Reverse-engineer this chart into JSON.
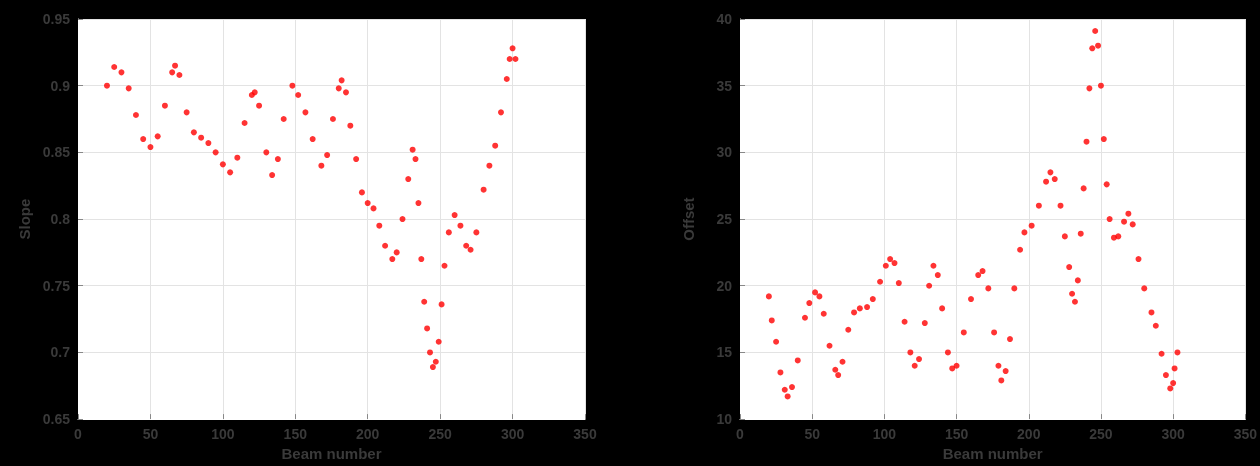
{
  "chart_data": [
    {
      "type": "scatter",
      "xlabel": "Beam number",
      "ylabel": "Slope",
      "xlim": [
        0,
        350
      ],
      "xticks": [
        0,
        50,
        100,
        150,
        200,
        250,
        300,
        350
      ],
      "ylim": [
        0.65,
        0.95
      ],
      "yticks": [
        0.65,
        0.7,
        0.75,
        0.8,
        0.85,
        0.9,
        0.95
      ],
      "grid": true,
      "marker": "circle",
      "series": [
        {
          "color": "#ff0000",
          "x": [
            20,
            25,
            30,
            35,
            40,
            45,
            50,
            55,
            60,
            65,
            67,
            70,
            75,
            80,
            85,
            90,
            95,
            100,
            105,
            110,
            115,
            120,
            122,
            125,
            130,
            134,
            138,
            142,
            148,
            152,
            157,
            162,
            168,
            172,
            176,
            180,
            182,
            185,
            188,
            192,
            196,
            200,
            204,
            208,
            212,
            217,
            220,
            224,
            228,
            231,
            233,
            235,
            237,
            239,
            241,
            243,
            245,
            247,
            249,
            251,
            253,
            256,
            260,
            264,
            268,
            271,
            275,
            280,
            284,
            288,
            292,
            296,
            298,
            300,
            302
          ],
          "values": [
            0.9,
            0.914,
            0.91,
            0.898,
            0.878,
            0.86,
            0.854,
            0.862,
            0.885,
            0.91,
            0.915,
            0.908,
            0.88,
            0.865,
            0.861,
            0.857,
            0.85,
            0.841,
            0.835,
            0.846,
            0.872,
            0.893,
            0.895,
            0.885,
            0.85,
            0.833,
            0.845,
            0.875,
            0.9,
            0.893,
            0.88,
            0.86,
            0.84,
            0.848,
            0.875,
            0.898,
            0.904,
            0.895,
            0.87,
            0.845,
            0.82,
            0.812,
            0.808,
            0.795,
            0.78,
            0.77,
            0.775,
            0.8,
            0.83,
            0.852,
            0.845,
            0.812,
            0.77,
            0.738,
            0.718,
            0.7,
            0.689,
            0.693,
            0.708,
            0.736,
            0.765,
            0.79,
            0.803,
            0.795,
            0.78,
            0.777,
            0.79,
            0.822,
            0.84,
            0.855,
            0.88,
            0.905,
            0.92,
            0.928,
            0.92
          ]
        }
      ]
    },
    {
      "type": "scatter",
      "xlabel": "Beam number",
      "ylabel": "Offset",
      "xlim": [
        0,
        350
      ],
      "xticks": [
        0,
        50,
        100,
        150,
        200,
        250,
        300,
        350
      ],
      "ylim": [
        10,
        40
      ],
      "yticks": [
        10,
        15,
        20,
        25,
        30,
        35,
        40
      ],
      "grid": true,
      "marker": "circle",
      "series": [
        {
          "color": "#ff0000",
          "x": [
            20,
            22,
            25,
            28,
            31,
            33,
            36,
            40,
            45,
            48,
            52,
            55,
            58,
            62,
            66,
            68,
            71,
            75,
            79,
            83,
            88,
            92,
            97,
            101,
            104,
            107,
            110,
            114,
            118,
            121,
            124,
            128,
            131,
            134,
            137,
            140,
            144,
            147,
            150,
            155,
            160,
            165,
            168,
            172,
            176,
            179,
            181,
            184,
            187,
            190,
            194,
            197,
            202,
            207,
            212,
            215,
            218,
            222,
            225,
            228,
            230,
            232,
            234,
            236,
            238,
            240,
            242,
            244,
            246,
            248,
            250,
            252,
            254,
            256,
            259,
            262,
            266,
            269,
            272,
            276,
            280,
            285,
            288,
            292,
            295,
            298,
            300,
            301,
            303
          ],
          "values": [
            19.2,
            17.4,
            15.8,
            13.5,
            12.2,
            11.7,
            12.4,
            14.4,
            17.6,
            18.7,
            19.5,
            19.2,
            17.9,
            15.5,
            13.7,
            13.3,
            14.3,
            16.7,
            18,
            18.3,
            18.4,
            19,
            20.3,
            21.5,
            22,
            21.7,
            20.2,
            17.3,
            15,
            14,
            14.5,
            17.2,
            20,
            21.5,
            20.8,
            18.3,
            15,
            13.8,
            14,
            16.5,
            19,
            20.8,
            21.1,
            19.8,
            16.5,
            14,
            12.9,
            13.6,
            16,
            19.8,
            22.7,
            24,
            24.5,
            26,
            27.8,
            28.5,
            28,
            26,
            23.7,
            21.4,
            19.4,
            18.8,
            20.4,
            23.9,
            27.3,
            30.8,
            34.8,
            37.8,
            39.1,
            38,
            35,
            31,
            27.6,
            25,
            23.6,
            23.7,
            24.8,
            25.4,
            24.6,
            22,
            19.8,
            18,
            17,
            14.9,
            13.3,
            12.3,
            12.7,
            13.8,
            15
          ]
        }
      ]
    }
  ]
}
